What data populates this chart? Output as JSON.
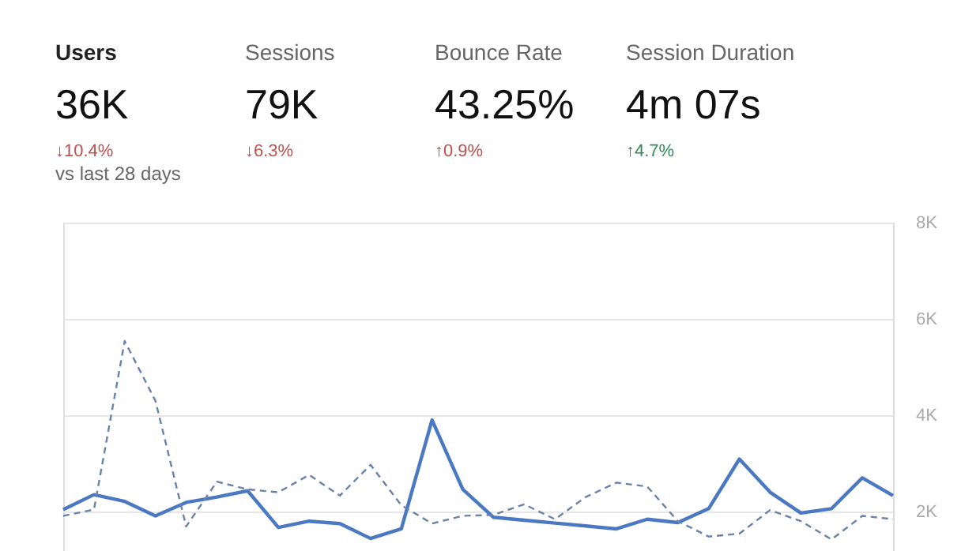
{
  "chart_data": {
    "type": "line",
    "annotations": [
      "Users",
      "36K",
      "↓10.4%",
      "vs last 28 days",
      "Sessions",
      "79K",
      "↓6.3%",
      "Bounce Rate",
      "43.25%",
      "↑0.9%",
      "Session Duration",
      "4m 07s",
      "↑4.7%"
    ],
    "categories": [
      null,
      null,
      null,
      null,
      null,
      null,
      null,
      null,
      null,
      null,
      null,
      null,
      null,
      null,
      null,
      null,
      null,
      null,
      null,
      null,
      null,
      null,
      null,
      null,
      null,
      null,
      null,
      null
    ],
    "series": [
      {
        "color": "#4a78c2",
        "line_style": "solid",
        "values": [
          2040,
          2350,
          2210,
          1910,
          2190,
          2300,
          2430,
          1670,
          1800,
          1750,
          1440,
          1640,
          3900,
          2460,
          1880,
          1820,
          1760,
          1700,
          1640,
          1840,
          1770,
          2060,
          3090,
          2400,
          1970,
          2060,
          2700,
          2330
        ]
      },
      {
        "color": "#6a82a8",
        "line_style": "dashed",
        "values": [
          1910,
          2040,
          5540,
          4300,
          1690,
          2620,
          2460,
          2400,
          2760,
          2330,
          2970,
          2130,
          1750,
          1910,
          1930,
          2150,
          1840,
          2300,
          2600,
          2520,
          1800,
          1480,
          1540,
          2030,
          1800,
          1420,
          1910,
          1840
        ]
      }
    ],
    "ylim": [
      1180,
      8000
    ],
    "yticks": [
      {
        "value": 2000,
        "label": "2K"
      },
      {
        "value": 4000,
        "label": "4K"
      },
      {
        "value": 6000,
        "label": "6K"
      },
      {
        "value": 8000,
        "label": "8K"
      }
    ],
    "grid": "y",
    "marker": "none"
  }
}
